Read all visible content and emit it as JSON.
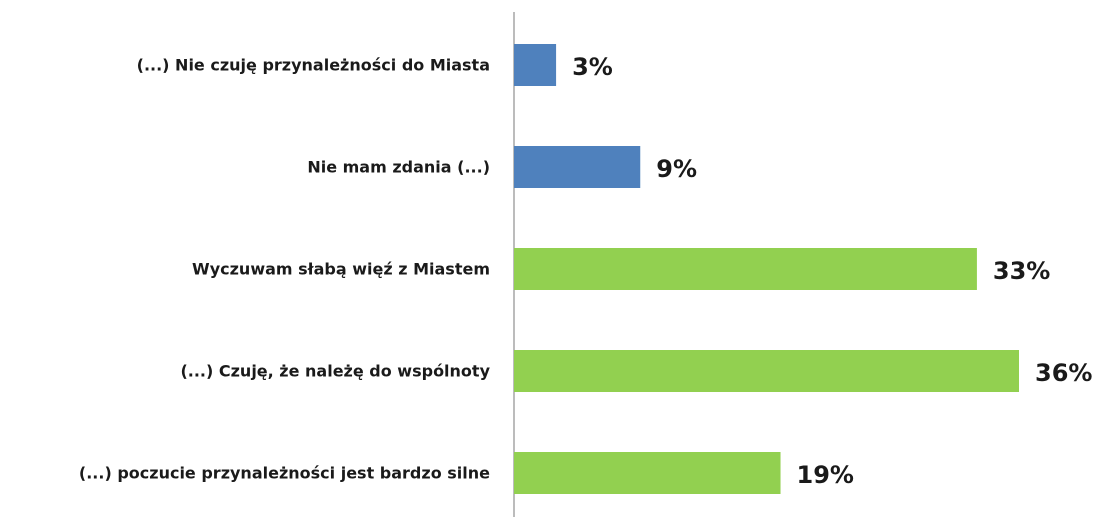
{
  "chart_data": {
    "type": "bar",
    "orientation": "horizontal",
    "categories": [
      "(...) Nie czuję przynależności do Miasta",
      "Nie mam zdania (...)",
      "Wyczuwam słabą więź z Miastem",
      "(...) Czuję, że należę do wspólnoty",
      "(...) poczucie przynależności jest bardzo silne"
    ],
    "values": [
      3,
      9,
      33,
      36,
      19
    ],
    "value_labels": [
      "3%",
      "9%",
      "33%",
      "36%",
      "19%"
    ],
    "colors": [
      "#4f81bd",
      "#4f81bd",
      "#92d050",
      "#92d050",
      "#92d050"
    ]
  }
}
